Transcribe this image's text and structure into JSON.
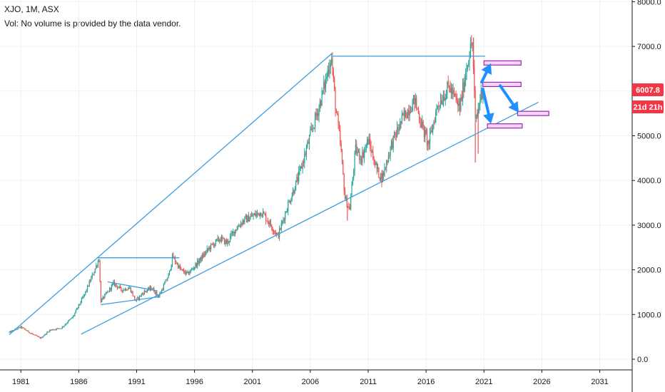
{
  "header": {
    "symbol_line": "XJO, 1M, ASX",
    "volume_note": "Vol: No volume is provided by the data vendor."
  },
  "price_badge": {
    "value": "6007.8",
    "countdown": "21d 21h",
    "color": "#f23645"
  },
  "colors": {
    "up": "#26a69a",
    "down": "#ef5350",
    "trendline": "#3c9ee0",
    "arrow": "#1e90ff",
    "box_border": "#9c27b0",
    "box_fill": "#f3d5f7",
    "grid": "#eef0f3",
    "axis": "#131722"
  },
  "chart_data": {
    "type": "candlestick",
    "title": "",
    "xlabel": "",
    "ylabel": "",
    "ylim": [
      0,
      8000
    ],
    "xlim": [
      1979.2,
      2033.8
    ],
    "y_ticks": [
      "0.0",
      "1000.0",
      "2000.0",
      "3000.0",
      "4000.0",
      "5000.0",
      "6000.0",
      "7000.0",
      "8000.0"
    ],
    "x_ticks": [
      "1981",
      "1986",
      "1991",
      "1996",
      "2001",
      "2006",
      "2011",
      "2016",
      "2021",
      "2026",
      "2031"
    ],
    "grid": true,
    "price_path": [
      [
        1980.0,
        600
      ],
      [
        1981.0,
        720
      ],
      [
        1982.0,
        560
      ],
      [
        1982.7,
        470
      ],
      [
        1983.5,
        650
      ],
      [
        1984.5,
        700
      ],
      [
        1985.5,
        950
      ],
      [
        1986.5,
        1450
      ],
      [
        1987.3,
        1950
      ],
      [
        1987.75,
        2250
      ],
      [
        1987.9,
        1300
      ],
      [
        1988.5,
        1500
      ],
      [
        1989.0,
        1700
      ],
      [
        1989.7,
        1550
      ],
      [
        1990.4,
        1600
      ],
      [
        1990.9,
        1300
      ],
      [
        1991.6,
        1500
      ],
      [
        1992.3,
        1600
      ],
      [
        1992.9,
        1400
      ],
      [
        1993.8,
        1900
      ],
      [
        1994.1,
        2300
      ],
      [
        1994.8,
        2000
      ],
      [
        1995.4,
        1900
      ],
      [
        1996.4,
        2200
      ],
      [
        1997.3,
        2500
      ],
      [
        1998.2,
        2700
      ],
      [
        1998.8,
        2600
      ],
      [
        1999.5,
        2900
      ],
      [
        2000.2,
        3100
      ],
      [
        2001.0,
        3200
      ],
      [
        2001.8,
        3300
      ],
      [
        2002.6,
        3000
      ],
      [
        2003.2,
        2750
      ],
      [
        2004.0,
        3400
      ],
      [
        2005.0,
        4100
      ],
      [
        2006.0,
        5000
      ],
      [
        2006.8,
        5700
      ],
      [
        2007.3,
        6200
      ],
      [
        2007.8,
        6800
      ],
      [
        2008.2,
        5600
      ],
      [
        2008.6,
        4800
      ],
      [
        2009.0,
        3600
      ],
      [
        2009.4,
        3350
      ],
      [
        2009.9,
        4700
      ],
      [
        2010.4,
        4500
      ],
      [
        2011.0,
        4900
      ],
      [
        2011.8,
        4200
      ],
      [
        2012.2,
        4050
      ],
      [
        2013.0,
        4800
      ],
      [
        2014.0,
        5400
      ],
      [
        2015.0,
        5800
      ],
      [
        2015.8,
        5100
      ],
      [
        2016.2,
        4800
      ],
      [
        2017.0,
        5700
      ],
      [
        2018.0,
        6100
      ],
      [
        2018.9,
        5600
      ],
      [
        2019.6,
        6700
      ],
      [
        2020.0,
        7100
      ],
      [
        2020.25,
        5300
      ],
      [
        2020.8,
        6000
      ],
      [
        2021.0,
        6007.8
      ]
    ],
    "min_wicks": [
      {
        "x": 2020.25,
        "low": 4400
      },
      {
        "x": 2009.2,
        "low": 3100
      },
      {
        "x": 2020.5,
        "low": 4600
      }
    ],
    "max_wicks": [
      {
        "x": 2020.1,
        "high": 7200
      }
    ],
    "trendlines": [
      {
        "x1": 1980.0,
        "y1": 550,
        "x2": 2007.9,
        "y2": 6850
      },
      {
        "x1": 1986.2,
        "y1": 560,
        "x2": 2025.7,
        "y2": 5750
      },
      {
        "x1": 2007.9,
        "y1": 6780,
        "x2": 2021.1,
        "y2": 6780
      },
      {
        "x1": 1987.6,
        "y1": 2270,
        "x2": 1994.7,
        "y2": 2270
      },
      {
        "x1": 1988.5,
        "y1": 1730,
        "x2": 1992.8,
        "y2": 1530
      },
      {
        "x1": 1987.9,
        "y1": 1220,
        "x2": 1993.0,
        "y2": 1400
      }
    ],
    "zones": [
      {
        "x1": 2021.0,
        "x2": 2024.2,
        "y": 6630
      },
      {
        "x1": 2020.9,
        "x2": 2024.2,
        "y": 6150
      },
      {
        "x1": 2023.9,
        "x2": 2026.6,
        "y": 5500
      },
      {
        "x1": 2021.3,
        "x2": 2024.3,
        "y": 5220
      }
    ],
    "arrows": [
      {
        "x1": 2020.8,
        "y1": 6200,
        "x2": 2021.6,
        "y2": 6620
      },
      {
        "x1": 2020.9,
        "y1": 6050,
        "x2": 2021.6,
        "y2": 5270
      },
      {
        "x1": 2022.4,
        "y1": 6120,
        "x2": 2024.0,
        "y2": 5520
      }
    ]
  }
}
